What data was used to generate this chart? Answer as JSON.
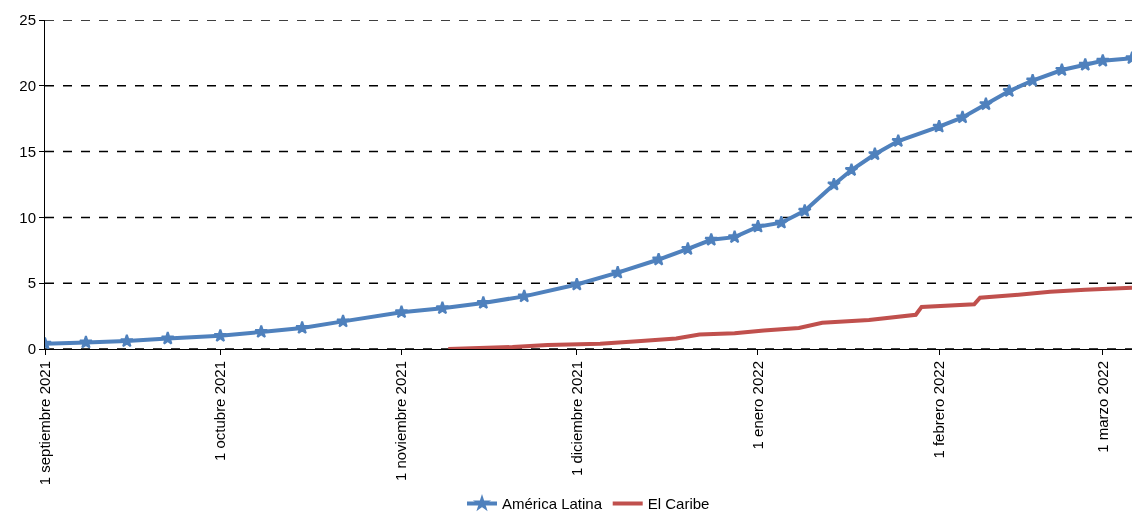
{
  "chart_data": {
    "type": "line",
    "xlim": [
      "2021-09-01",
      "2022-03-06"
    ],
    "xticks": [
      {
        "value": "2021-09-01",
        "label": "1 septiembre 2021"
      },
      {
        "value": "2021-10-01",
        "label": "1 octubre 2021"
      },
      {
        "value": "2021-11-01",
        "label": "1 noviembre 2021"
      },
      {
        "value": "2021-12-01",
        "label": "1 diciembre 2021"
      },
      {
        "value": "2022-01-01",
        "label": "1 enero 2022"
      },
      {
        "value": "2022-02-01",
        "label": "1 febrero 2022"
      },
      {
        "value": "2022-03-01",
        "label": "1 marzo 2022"
      }
    ],
    "ylim": [
      0,
      25
    ],
    "yticks": [
      0,
      5,
      10,
      15,
      20,
      25
    ],
    "grid": "y",
    "legend": "bottom",
    "series": [
      {
        "name": "América Latina",
        "color": "#4f81bd",
        "marker": "star",
        "x": [
          "2021-09-01",
          "2021-09-08",
          "2021-09-15",
          "2021-09-22",
          "2021-10-01",
          "2021-10-08",
          "2021-10-15",
          "2021-10-22",
          "2021-11-01",
          "2021-11-08",
          "2021-11-15",
          "2021-11-22",
          "2021-12-01",
          "2021-12-08",
          "2021-12-15",
          "2021-12-20",
          "2021-12-24",
          "2021-12-28",
          "2022-01-01",
          "2022-01-05",
          "2022-01-09",
          "2022-01-14",
          "2022-01-17",
          "2022-01-21",
          "2022-01-25",
          "2022-02-01",
          "2022-02-05",
          "2022-02-09",
          "2022-02-13",
          "2022-02-17",
          "2022-02-22",
          "2022-02-26",
          "2022-03-01",
          "2022-03-06"
        ],
        "values": [
          0.4,
          0.5,
          0.6,
          0.8,
          1.0,
          1.3,
          1.6,
          2.1,
          2.8,
          3.1,
          3.5,
          4.0,
          4.9,
          5.8,
          6.8,
          7.6,
          8.3,
          8.5,
          9.3,
          9.6,
          10.5,
          12.5,
          13.6,
          14.8,
          15.8,
          16.9,
          17.6,
          18.6,
          19.6,
          20.4,
          21.2,
          21.6,
          21.9,
          22.1
        ]
      },
      {
        "name": "El Caribe",
        "color": "#c0504d",
        "marker": "none",
        "x": [
          "2021-11-09",
          "2021-11-20",
          "2021-11-26",
          "2021-12-05",
          "2021-12-12",
          "2021-12-18",
          "2021-12-22",
          "2021-12-28",
          "2022-01-02",
          "2022-01-08",
          "2022-01-12",
          "2022-01-20",
          "2022-01-28",
          "2022-01-29",
          "2022-02-07",
          "2022-02-08",
          "2022-02-14",
          "2022-02-20",
          "2022-02-26",
          "2022-03-06"
        ],
        "values": [
          0.0,
          0.15,
          0.3,
          0.4,
          0.6,
          0.8,
          1.1,
          1.2,
          1.4,
          1.6,
          2.0,
          2.2,
          2.6,
          3.2,
          3.4,
          3.9,
          4.1,
          4.35,
          4.5,
          4.65
        ]
      }
    ]
  }
}
